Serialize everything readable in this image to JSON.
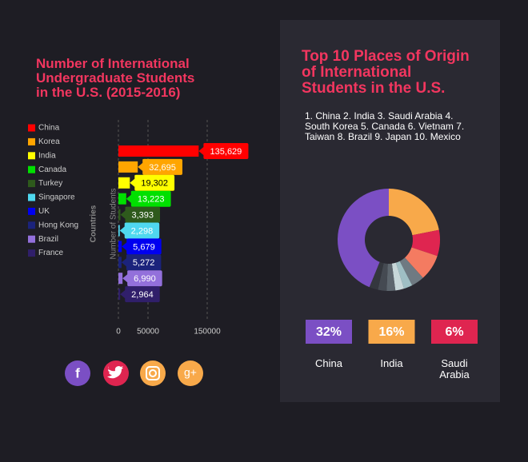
{
  "chart_data": [
    {
      "type": "barh",
      "title": [
        "Number of International",
        "Undergraduate Students",
        "in the U.S.  (2015-2016)"
      ],
      "xlabel": "Number of Students",
      "ylabel": "Countries",
      "categories": [
        "China",
        "Korea",
        "India",
        "Canada",
        "Turkey",
        "Singapore",
        "UK",
        "Hong Kong",
        "Brazil",
        "France"
      ],
      "values": [
        135629,
        32695,
        19302,
        13223,
        3393,
        2298,
        5679,
        5272,
        6990,
        2964
      ],
      "value_labels": [
        "135,629",
        "32,695",
        "19,302",
        "13,223",
        "3,393",
        "2,298",
        "5,679",
        "5,272",
        "6,990",
        "2,964"
      ],
      "colors": [
        "#ff0000",
        "#ffa500",
        "#ffff00",
        "#00e000",
        "#2e5a1c",
        "#4fd8ef",
        "#0000f0",
        "#1b237c",
        "#9370db",
        "#301f6a"
      ],
      "xlim": [
        0,
        150000
      ],
      "xticks": [
        0,
        50000,
        150000
      ],
      "grid": true
    },
    {
      "type": "donut",
      "title": [
        "Top 10 Places of Origin",
        "of International",
        "Students in the U.S."
      ],
      "subtitle": [
        "1. China 2. India 3. Saudi Arabia  4.",
        "South Korea 5. Canada 6. Vietnam 7.",
        "Taiwan 8. Brazil 9. Japan 10. Mexico"
      ],
      "categories": [
        "China",
        "India",
        "Saudi Arabia",
        "South Korea",
        "Canada",
        "Vietnam",
        "Taiwan",
        "Brazil",
        "Japan",
        "Mexico"
      ],
      "values": [
        32,
        16,
        6,
        6,
        3,
        2,
        2,
        2,
        2,
        2
      ],
      "value_labels": [
        "32%",
        "16%",
        "6%",
        null,
        null,
        null,
        null,
        null,
        null,
        null
      ],
      "colors": [
        "#7b4fc4",
        "#f8a94a",
        "#df2550",
        "#f47b61",
        "#6f7a82",
        "#9fbfc4",
        "#c7d7d9",
        "#5d666e",
        "#454a52",
        "#34373e"
      ]
    }
  ],
  "social": {
    "facebook": "f",
    "google_plus": "g+"
  }
}
